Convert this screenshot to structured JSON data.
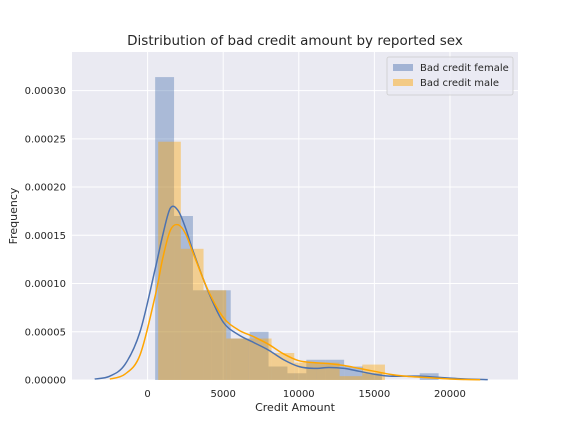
{
  "chart_data": {
    "type": "histogram",
    "title": "Distribution of bad credit amount by reported sex",
    "xlabel": "Credit Amount",
    "ylabel": "Frequency",
    "xlim": [
      -5000,
      24500
    ],
    "ylim": [
      0,
      0.00034
    ],
    "xticks": [
      0,
      5000,
      10000,
      15000,
      20000
    ],
    "xtick_labels": [
      "0",
      "5000",
      "10000",
      "15000",
      "20000"
    ],
    "yticks": [
      0,
      5e-05,
      0.0001,
      0.00015,
      0.0002,
      0.00025,
      0.0003
    ],
    "ytick_labels": [
      "0.00000",
      "0.00005",
      "0.00010",
      "0.00015",
      "0.00020",
      "0.00025",
      "0.00030"
    ],
    "grid": true,
    "legend_position": "top-right",
    "series": [
      {
        "name": "Bad credit female",
        "color": "#4c72b0",
        "bar_alpha": 0.4,
        "bins": [
          {
            "x0": 500,
            "x1": 1750,
            "value": 0.000314
          },
          {
            "x0": 1750,
            "x1": 3000,
            "value": 0.00017
          },
          {
            "x0": 3000,
            "x1": 4250,
            "value": 9.3e-05
          },
          {
            "x0": 4250,
            "x1": 5500,
            "value": 9.3e-05
          },
          {
            "x0": 5500,
            "x1": 6750,
            "value": 4.3e-05
          },
          {
            "x0": 6750,
            "x1": 8000,
            "value": 5e-05
          },
          {
            "x0": 8000,
            "x1": 9250,
            "value": 1.4e-05
          },
          {
            "x0": 9250,
            "x1": 10500,
            "value": 7e-06
          },
          {
            "x0": 10500,
            "x1": 11750,
            "value": 2.1e-05
          },
          {
            "x0": 11750,
            "x1": 13000,
            "value": 2.1e-05
          },
          {
            "x0": 13000,
            "x1": 14250,
            "value": 1.4e-05
          },
          {
            "x0": 14250,
            "x1": 15500,
            "value": 7e-06
          },
          {
            "x0": 15500,
            "x1": 16750,
            "value": 0.0
          },
          {
            "x0": 16750,
            "x1": 18000,
            "value": 0.0
          },
          {
            "x0": 18000,
            "x1": 19250,
            "value": 7e-06
          }
        ],
        "kde": [
          [
            -3500,
            1e-06
          ],
          [
            -2500,
            4e-06
          ],
          [
            -1500,
            1.6e-05
          ],
          [
            -500,
            5e-05
          ],
          [
            500,
            0.000115
          ],
          [
            1000,
            0.00015
          ],
          [
            1500,
            0.000178
          ],
          [
            2000,
            0.000176
          ],
          [
            2500,
            0.000158
          ],
          [
            3000,
            0.000134
          ],
          [
            4000,
            9.2e-05
          ],
          [
            5000,
            6e-05
          ],
          [
            6000,
            4.7e-05
          ],
          [
            7000,
            3.9e-05
          ],
          [
            8000,
            3.1e-05
          ],
          [
            9000,
            2.1e-05
          ],
          [
            10000,
            1.4e-05
          ],
          [
            11000,
            1.2e-05
          ],
          [
            12000,
            1.3e-05
          ],
          [
            13000,
            1.2e-05
          ],
          [
            14000,
            9e-06
          ],
          [
            15000,
            6e-06
          ],
          [
            16000,
            4e-06
          ],
          [
            17000,
            4e-06
          ],
          [
            18000,
            4e-06
          ],
          [
            19000,
            3e-06
          ],
          [
            20000,
            2e-06
          ],
          [
            21000,
            1e-06
          ],
          [
            22500,
            4e-07
          ]
        ]
      },
      {
        "name": "Bad credit male",
        "color": "#ffa500",
        "bar_alpha": 0.4,
        "bins": [
          {
            "x0": 700,
            "x1": 2200,
            "value": 0.000247
          },
          {
            "x0": 2200,
            "x1": 3700,
            "value": 0.000136
          },
          {
            "x0": 3700,
            "x1": 5200,
            "value": 9.3e-05
          },
          {
            "x0": 5200,
            "x1": 6700,
            "value": 4.3e-05
          },
          {
            "x0": 6700,
            "x1": 8200,
            "value": 4.3e-05
          },
          {
            "x0": 8200,
            "x1": 9700,
            "value": 2.8e-05
          },
          {
            "x0": 9700,
            "x1": 11200,
            "value": 1.8e-05
          },
          {
            "x0": 11200,
            "x1": 12700,
            "value": 1.8e-05
          },
          {
            "x0": 12700,
            "x1": 14200,
            "value": 4e-06
          },
          {
            "x0": 14200,
            "x1": 15700,
            "value": 1.6e-05
          }
        ],
        "kde": [
          [
            -2500,
            1e-06
          ],
          [
            -1500,
            6e-06
          ],
          [
            -500,
            2.6e-05
          ],
          [
            500,
            8.7e-05
          ],
          [
            1000,
            0.000126
          ],
          [
            1500,
            0.000155
          ],
          [
            2000,
            0.000161
          ],
          [
            2500,
            0.000152
          ],
          [
            3000,
            0.000132
          ],
          [
            4000,
            9.3e-05
          ],
          [
            5000,
            6.5e-05
          ],
          [
            6000,
            5.2e-05
          ],
          [
            7000,
            4.5e-05
          ],
          [
            8000,
            3.7e-05
          ],
          [
            9000,
            2.7e-05
          ],
          [
            10000,
            2e-05
          ],
          [
            11000,
            1.8e-05
          ],
          [
            12000,
            1.7e-05
          ],
          [
            13000,
            1.5e-05
          ],
          [
            14000,
            1.2e-05
          ],
          [
            15000,
            9e-06
          ],
          [
            16000,
            6e-06
          ],
          [
            17000,
            4e-06
          ],
          [
            18000,
            3e-06
          ],
          [
            19000,
            2e-06
          ],
          [
            20000,
            1e-06
          ],
          [
            21000,
            5e-07
          ],
          [
            22000,
            2e-07
          ]
        ]
      }
    ]
  }
}
